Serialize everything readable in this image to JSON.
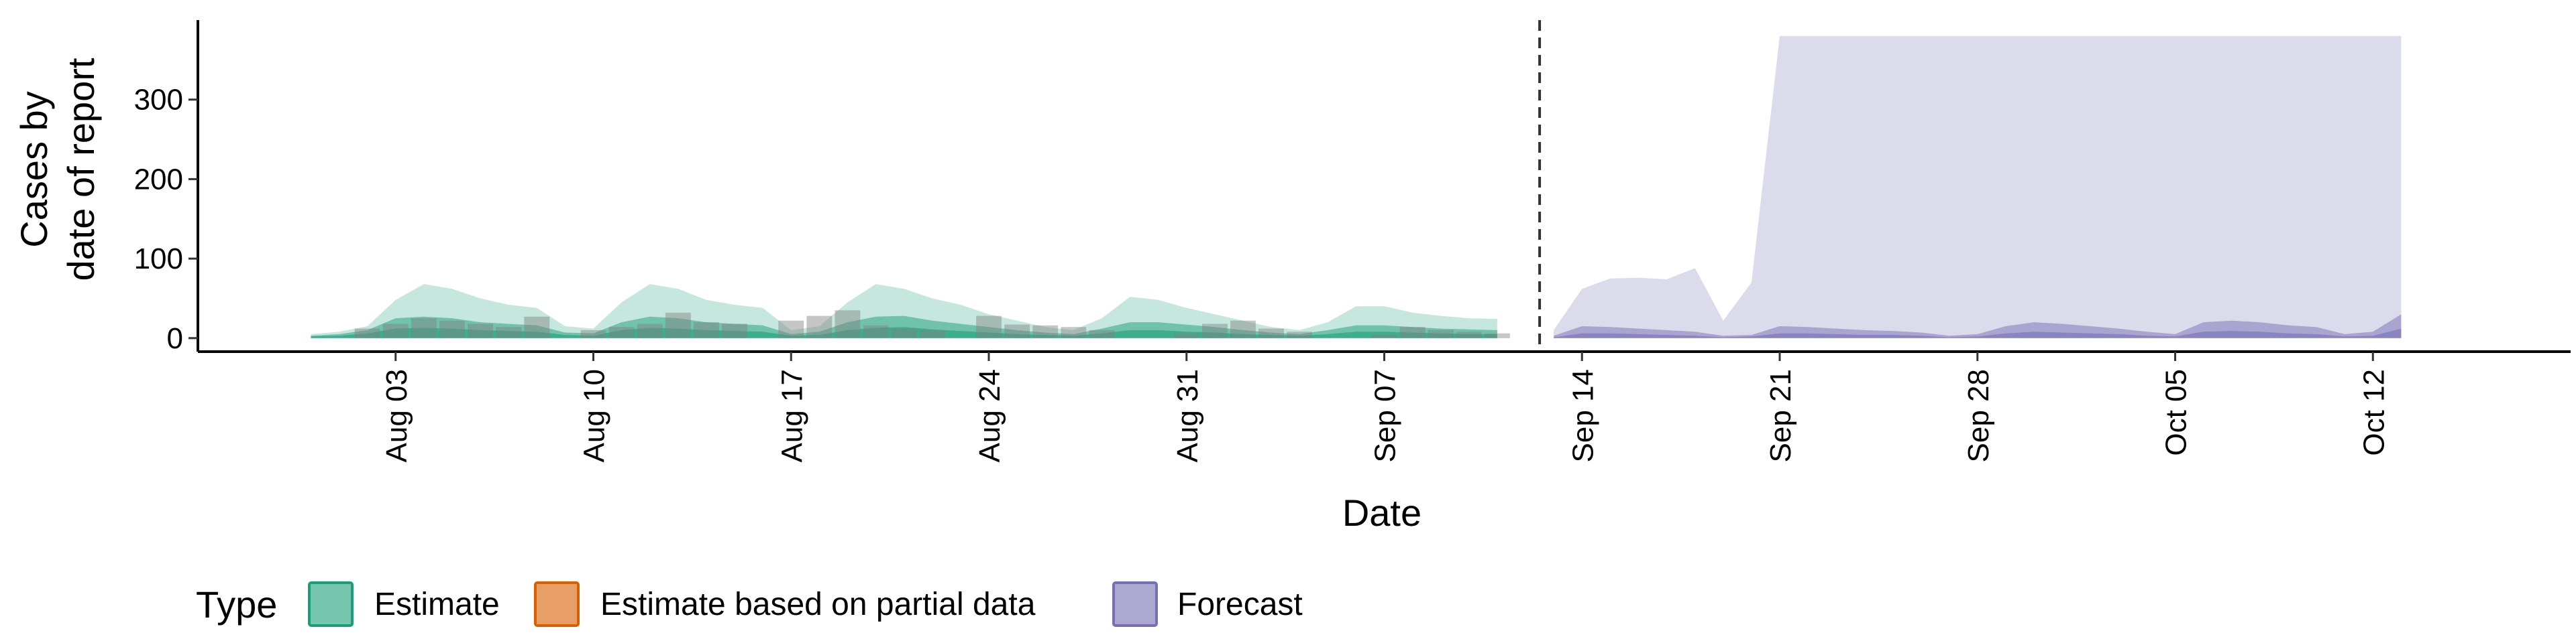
{
  "chart_data": {
    "type": "area",
    "xlabel": "Date",
    "ylabel_lines": [
      "Cases by",
      "date of report"
    ],
    "ylim": [
      -17,
      400
    ],
    "yticks": [
      0,
      100,
      200,
      300
    ],
    "xlim": [
      "2020-07-27",
      "2020-10-19"
    ],
    "xticks": [
      {
        "date": "2020-08-03",
        "label": "Aug 03"
      },
      {
        "date": "2020-08-10",
        "label": "Aug 10"
      },
      {
        "date": "2020-08-17",
        "label": "Aug 17"
      },
      {
        "date": "2020-08-24",
        "label": "Aug 24"
      },
      {
        "date": "2020-08-31",
        "label": "Aug 31"
      },
      {
        "date": "2020-09-07",
        "label": "Sep 07"
      },
      {
        "date": "2020-09-14",
        "label": "Sep 14"
      },
      {
        "date": "2020-09-21",
        "label": "Sep 21"
      },
      {
        "date": "2020-09-28",
        "label": "Sep 28"
      },
      {
        "date": "2020-10-05",
        "label": "Oct 05"
      },
      {
        "date": "2020-10-12",
        "label": "Oct 12"
      }
    ],
    "forecast_start": "2020-09-13",
    "grid": false,
    "legend": {
      "position": "bottom-left",
      "title": "Type",
      "items": [
        {
          "label": "Estimate",
          "fill": "#1B9E77",
          "stroke": "#1B9E77"
        },
        {
          "label": "Estimate based on partial data",
          "fill": "#D95F02",
          "stroke": "#D95F02"
        },
        {
          "label": "Forecast",
          "fill": "#7570B3",
          "stroke": "#7570B3"
        }
      ]
    },
    "colors": {
      "estimate": "#1B9E77",
      "forecast": "#7570B3",
      "bars": "#808080",
      "vline": "#333333"
    },
    "estimate": {
      "dates": [
        "2020-07-31",
        "2020-08-01",
        "2020-08-02",
        "2020-08-03",
        "2020-08-04",
        "2020-08-05",
        "2020-08-06",
        "2020-08-07",
        "2020-08-08",
        "2020-08-09",
        "2020-08-10",
        "2020-08-11",
        "2020-08-12",
        "2020-08-13",
        "2020-08-14",
        "2020-08-15",
        "2020-08-16",
        "2020-08-17",
        "2020-08-18",
        "2020-08-19",
        "2020-08-20",
        "2020-08-21",
        "2020-08-22",
        "2020-08-23",
        "2020-08-24",
        "2020-08-25",
        "2020-08-26",
        "2020-08-27",
        "2020-08-28",
        "2020-08-29",
        "2020-08-30",
        "2020-08-31",
        "2020-09-01",
        "2020-09-02",
        "2020-09-03",
        "2020-09-04",
        "2020-09-05",
        "2020-09-06",
        "2020-09-07",
        "2020-09-08",
        "2020-09-09",
        "2020-09-10",
        "2020-09-11"
      ],
      "upper90": [
        5,
        8,
        15,
        48,
        68,
        62,
        50,
        42,
        38,
        15,
        12,
        45,
        68,
        62,
        48,
        42,
        38,
        10,
        15,
        45,
        68,
        62,
        50,
        42,
        30,
        22,
        14,
        10,
        25,
        52,
        48,
        38,
        30,
        22,
        14,
        10,
        20,
        40,
        40,
        32,
        28,
        25,
        24
      ],
      "upper50": [
        3,
        5,
        10,
        25,
        27,
        25,
        20,
        18,
        16,
        7,
        6,
        20,
        27,
        25,
        20,
        18,
        16,
        5,
        8,
        20,
        27,
        28,
        22,
        18,
        14,
        10,
        7,
        5,
        12,
        20,
        20,
        17,
        14,
        10,
        7,
        5,
        10,
        16,
        16,
        14,
        12,
        11,
        10
      ],
      "median": [
        2,
        3,
        6,
        12,
        13,
        12,
        10,
        9,
        8,
        4,
        3,
        10,
        13,
        12,
        10,
        9,
        8,
        3,
        4,
        10,
        13,
        14,
        11,
        9,
        7,
        5,
        4,
        3,
        6,
        10,
        10,
        8,
        7,
        5,
        4,
        3,
        5,
        8,
        8,
        7,
        6,
        5,
        5
      ]
    },
    "forecast": {
      "dates": [
        "2020-09-13",
        "2020-09-14",
        "2020-09-15",
        "2020-09-16",
        "2020-09-17",
        "2020-09-18",
        "2020-09-19",
        "2020-09-20",
        "2020-09-21",
        "2020-09-22",
        "2020-09-23",
        "2020-09-24",
        "2020-09-25",
        "2020-09-26",
        "2020-09-27",
        "2020-09-28",
        "2020-09-29",
        "2020-09-30",
        "2020-10-01",
        "2020-10-02",
        "2020-10-03",
        "2020-10-04",
        "2020-10-05",
        "2020-10-06",
        "2020-10-07",
        "2020-10-08",
        "2020-10-09",
        "2020-10-10",
        "2020-10-11",
        "2020-10-12",
        "2020-10-13"
      ],
      "upper90": [
        10,
        62,
        75,
        76,
        74,
        88,
        22,
        70,
        380,
        380,
        380,
        380,
        380,
        380,
        380,
        380,
        380,
        380,
        380,
        380,
        380,
        380,
        380,
        380,
        380,
        380,
        380,
        380,
        380,
        380,
        380
      ],
      "upper50": [
        3,
        15,
        14,
        12,
        10,
        8,
        3,
        4,
        15,
        14,
        12,
        10,
        9,
        7,
        3,
        5,
        15,
        20,
        18,
        15,
        12,
        8,
        5,
        20,
        22,
        20,
        16,
        14,
        5,
        8,
        30
      ],
      "median": [
        1,
        6,
        6,
        5,
        4,
        3,
        1,
        2,
        6,
        6,
        5,
        4,
        4,
        3,
        1,
        2,
        6,
        8,
        7,
        6,
        5,
        3,
        2,
        8,
        9,
        8,
        6,
        5,
        2,
        3,
        12
      ]
    },
    "reported": {
      "dates": [
        "2020-08-02",
        "2020-08-03",
        "2020-08-04",
        "2020-08-05",
        "2020-08-06",
        "2020-08-07",
        "2020-08-08",
        "2020-08-10",
        "2020-08-11",
        "2020-08-12",
        "2020-08-13",
        "2020-08-14",
        "2020-08-15",
        "2020-08-17",
        "2020-08-18",
        "2020-08-19",
        "2020-08-20",
        "2020-08-21",
        "2020-08-22",
        "2020-08-24",
        "2020-08-25",
        "2020-08-26",
        "2020-08-27",
        "2020-08-28",
        "2020-08-31",
        "2020-09-01",
        "2020-09-02",
        "2020-09-03",
        "2020-09-04",
        "2020-09-07",
        "2020-09-08",
        "2020-09-09",
        "2020-09-10",
        "2020-09-11"
      ],
      "values": [
        12,
        18,
        25,
        22,
        18,
        14,
        27,
        10,
        14,
        18,
        32,
        20,
        18,
        22,
        28,
        35,
        16,
        12,
        10,
        28,
        17,
        16,
        14,
        10,
        6,
        18,
        22,
        12,
        8,
        4,
        14,
        10,
        8,
        6
      ]
    }
  }
}
